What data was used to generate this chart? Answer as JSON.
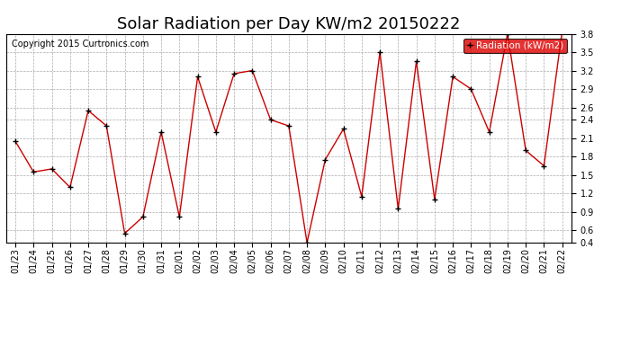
{
  "title": "Solar Radiation per Day KW/m2 20150222",
  "copyright_text": "Copyright 2015 Curtronics.com",
  "legend_label": "Radiation (kW/m2)",
  "dates": [
    "01/23",
    "01/24",
    "01/25",
    "01/26",
    "01/27",
    "01/28",
    "01/29",
    "01/30",
    "01/31",
    "02/01",
    "02/02",
    "02/03",
    "02/04",
    "02/05",
    "02/06",
    "02/07",
    "02/08",
    "02/09",
    "02/10",
    "02/11",
    "02/12",
    "02/13",
    "02/14",
    "02/15",
    "02/16",
    "02/17",
    "02/18",
    "02/19",
    "02/20",
    "02/21",
    "02/22"
  ],
  "values": [
    2.05,
    1.55,
    1.6,
    1.3,
    2.55,
    2.3,
    0.55,
    0.82,
    2.2,
    0.82,
    3.1,
    2.2,
    3.15,
    3.2,
    2.4,
    2.3,
    0.4,
    1.75,
    2.25,
    1.15,
    3.5,
    0.95,
    3.35,
    1.1,
    3.1,
    2.9,
    2.2,
    3.8,
    1.9,
    1.65,
    3.85
  ],
  "line_color": "#cc0000",
  "marker_color": "#000000",
  "background_color": "#ffffff",
  "grid_color": "#aaaaaa",
  "legend_bg": "#dd0000",
  "legend_text_color": "#ffffff",
  "ylim": [
    0.4,
    3.8
  ],
  "yticks": [
    0.4,
    0.6,
    0.9,
    1.2,
    1.5,
    1.8,
    2.1,
    2.4,
    2.6,
    2.9,
    3.2,
    3.5,
    3.8
  ],
  "title_fontsize": 13,
  "copyright_fontsize": 7,
  "tick_fontsize": 7,
  "legend_fontsize": 7.5
}
